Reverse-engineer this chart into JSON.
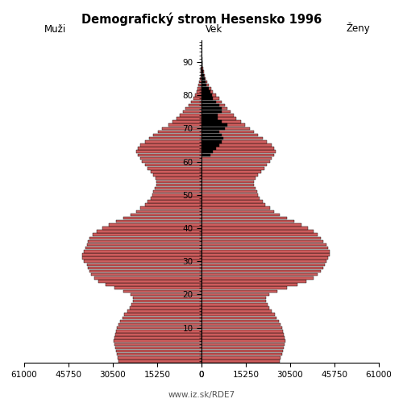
{
  "title": "Demografický strom Hesensko 1996",
  "xlabel_left": "Muži",
  "xlabel_center": "Vek",
  "xlabel_right": "Ženy",
  "footer": "www.iz.sk/RDE7",
  "xlim": 61000,
  "bar_color": "#cd5c5c",
  "black_color": "#000000",
  "ages": [
    0,
    1,
    2,
    3,
    4,
    5,
    6,
    7,
    8,
    9,
    10,
    11,
    12,
    13,
    14,
    15,
    16,
    17,
    18,
    19,
    20,
    21,
    22,
    23,
    24,
    25,
    26,
    27,
    28,
    29,
    30,
    31,
    32,
    33,
    34,
    35,
    36,
    37,
    38,
    39,
    40,
    41,
    42,
    43,
    44,
    45,
    46,
    47,
    48,
    49,
    50,
    51,
    52,
    53,
    54,
    55,
    56,
    57,
    58,
    59,
    60,
    61,
    62,
    63,
    64,
    65,
    66,
    67,
    68,
    69,
    70,
    71,
    72,
    73,
    74,
    75,
    76,
    77,
    78,
    79,
    80,
    81,
    82,
    83,
    84,
    85,
    86,
    87,
    88,
    89,
    90,
    91,
    92,
    93,
    94,
    95
  ],
  "males": [
    28500,
    28800,
    29200,
    29500,
    29800,
    30000,
    30100,
    30000,
    29800,
    29500,
    29000,
    28500,
    27900,
    27300,
    26500,
    25600,
    24800,
    24100,
    23600,
    23500,
    24500,
    27000,
    30000,
    33000,
    35500,
    37000,
    38000,
    38500,
    39000,
    39500,
    40500,
    41000,
    41000,
    40500,
    40000,
    39500,
    39000,
    38500,
    37500,
    36000,
    34000,
    32000,
    29500,
    27000,
    24500,
    22500,
    21000,
    19500,
    18500,
    17500,
    17000,
    16500,
    16000,
    15500,
    15500,
    15800,
    16500,
    17500,
    18500,
    19500,
    20500,
    21000,
    22000,
    22500,
    22000,
    21000,
    19500,
    18000,
    16500,
    15000,
    13500,
    11500,
    10000,
    8500,
    7500,
    6500,
    5500,
    4500,
    3500,
    2800,
    2200,
    1700,
    1300,
    1000,
    700,
    500,
    350,
    250,
    180,
    130,
    90,
    60,
    40,
    25,
    15,
    8
  ],
  "females": [
    27000,
    27300,
    27600,
    27900,
    28200,
    28500,
    28700,
    28600,
    28400,
    28100,
    27600,
    27100,
    26500,
    25900,
    25100,
    24200,
    23400,
    22700,
    22200,
    22100,
    23200,
    26000,
    29500,
    33000,
    36000,
    38500,
    40000,
    41000,
    42000,
    42500,
    43000,
    43500,
    44000,
    44000,
    43500,
    43000,
    42000,
    41000,
    40000,
    38500,
    36500,
    34500,
    32000,
    29500,
    27000,
    25000,
    23500,
    22000,
    21000,
    20000,
    19500,
    19000,
    18500,
    18000,
    18000,
    18500,
    19500,
    20500,
    21500,
    22500,
    23500,
    24000,
    25000,
    25500,
    25000,
    24000,
    22500,
    21000,
    19500,
    18000,
    16500,
    15000,
    13500,
    12000,
    11000,
    10000,
    9000,
    8000,
    7000,
    6000,
    5000,
    4000,
    3200,
    2500,
    1900,
    1400,
    1000,
    700,
    500,
    350,
    240,
    160,
    100,
    65,
    40,
    22
  ],
  "females_black": [
    0,
    0,
    0,
    0,
    0,
    0,
    0,
    0,
    0,
    0,
    0,
    0,
    0,
    0,
    0,
    0,
    0,
    0,
    0,
    0,
    0,
    0,
    0,
    0,
    0,
    0,
    0,
    0,
    0,
    0,
    0,
    0,
    0,
    0,
    0,
    0,
    0,
    0,
    0,
    0,
    0,
    0,
    0,
    0,
    0,
    0,
    0,
    0,
    0,
    0,
    0,
    0,
    0,
    0,
    0,
    0,
    0,
    0,
    0,
    0,
    0,
    0,
    3000,
    4000,
    5000,
    6000,
    7000,
    7500,
    7000,
    6000,
    8000,
    9000,
    7000,
    5500,
    5500,
    7000,
    7000,
    6000,
    5000,
    4000,
    3500,
    3000,
    2400,
    1800,
    1400,
    1000,
    700,
    500,
    350,
    240,
    160,
    100,
    65,
    40,
    22
  ],
  "males_black": [
    0,
    0,
    0,
    0,
    0,
    0,
    0,
    0,
    0,
    0,
    0,
    0,
    0,
    0,
    0,
    0,
    0,
    0,
    0,
    0,
    0,
    0,
    0,
    0,
    0,
    0,
    0,
    0,
    0,
    0,
    0,
    0,
    0,
    0,
    0,
    0,
    0,
    0,
    0,
    0,
    0,
    0,
    0,
    0,
    0,
    0,
    0,
    0,
    0,
    0,
    0,
    0,
    0,
    0,
    0,
    0,
    0,
    0,
    0,
    0,
    0,
    0,
    0,
    0,
    0,
    0,
    0,
    0,
    0,
    0,
    0,
    0,
    0,
    0,
    0,
    0,
    0,
    0,
    0,
    0,
    0,
    0,
    0,
    0,
    0,
    0,
    0,
    0,
    0,
    0,
    0,
    0,
    0,
    0,
    0,
    0
  ]
}
